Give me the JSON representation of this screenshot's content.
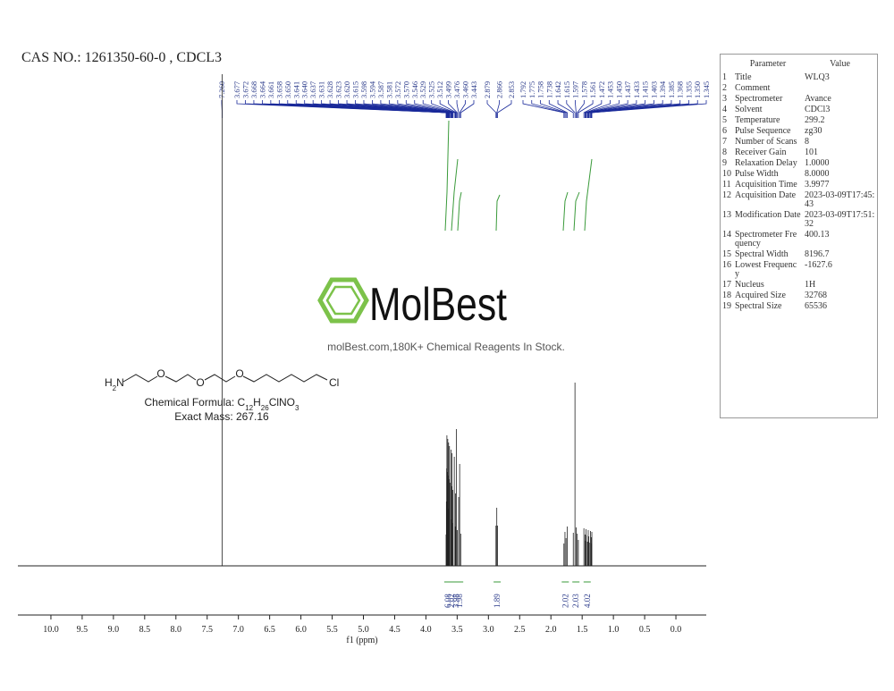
{
  "header": {
    "title": "CAS NO.: 1261350-60-0 , CDCL3"
  },
  "peaks": [
    {
      "value": 7.26,
      "label": "7.260"
    },
    3.677,
    3.672,
    3.668,
    3.664,
    3.661,
    3.658,
    {
      "value": 3.65,
      "label": "3.650"
    },
    3.641,
    {
      "value": 3.64,
      "label": "3.640"
    },
    3.637,
    3.631,
    3.628,
    3.623,
    {
      "value": 3.62,
      "label": "3.620"
    },
    3.615,
    3.598,
    3.594,
    3.587,
    3.581,
    3.572,
    {
      "value": 3.57,
      "label": "3.570"
    },
    3.546,
    3.529,
    3.525,
    3.512,
    3.499,
    3.476,
    {
      "value": 3.46,
      "label": "3.460"
    },
    3.443,
    2.879,
    2.866,
    2.853,
    1.792,
    1.775,
    1.758,
    1.738,
    1.642,
    1.615,
    1.597,
    1.578,
    1.561,
    1.472,
    1.453,
    {
      "value": 1.45,
      "label": "1.450"
    },
    1.437,
    1.433,
    1.415,
    1.403,
    1.394,
    1.385,
    1.368,
    1.355,
    {
      "value": 1.35,
      "label": "1.350"
    },
    1.345
  ],
  "integrals": [
    6.08,
    2.02,
    3.98,
    1.98,
    1.89,
    2.02,
    2.03,
    4.02
  ],
  "axis": {
    "label": "f1 (ppm)",
    "range": [
      10.5,
      -0.5
    ],
    "ticks": [
      {
        "value": 10,
        "label": "10.0"
      },
      9.5,
      {
        "value": 9,
        "label": "9.0"
      },
      8.5,
      {
        "value": 8,
        "label": "8.0"
      },
      7.5,
      {
        "value": 7,
        "label": "7.0"
      },
      6.5,
      {
        "value": 6,
        "label": "6.0"
      },
      5.5,
      {
        "value": 5,
        "label": "5.0"
      },
      4.5,
      {
        "value": 4,
        "label": "4.0"
      },
      3.5,
      {
        "value": 3,
        "label": "3.0"
      },
      2.5,
      {
        "value": 2,
        "label": "2.0"
      },
      1.5,
      {
        "value": 1,
        "label": "1.0"
      },
      0.5,
      {
        "value": 0,
        "label": "0.0"
      }
    ]
  },
  "molecule": {
    "amine": [
      "H",
      "2",
      "N"
    ],
    "oxygen": "O",
    "chlorine": "Cl",
    "formula": [
      "Chemical Formula: C",
      "12",
      "H",
      "26",
      "ClNO",
      "3"
    ],
    "mass": "Exact Mass: 267.16"
  },
  "watermark": {
    "brand": "MolBest",
    "tagline": "molBest.com,180K+ Chemical Reagents In Stock."
  },
  "parameters": {
    "header": [
      "Parameter",
      "Value"
    ],
    "rows": [
      [
        1,
        "Title",
        "WLQ3"
      ],
      [
        2,
        "Comment",
        ""
      ],
      [
        3,
        "Spectrometer",
        "Avance"
      ],
      [
        4,
        "Solvent",
        "CDCl3"
      ],
      [
        5,
        "Temperature",
        299.2
      ],
      [
        6,
        "Pulse Sequence",
        "zg30"
      ],
      [
        7,
        "Number of Scans",
        8
      ],
      [
        8,
        "Receiver Gain",
        101
      ],
      [
        9,
        "Relaxation Delay",
        "1.0000"
      ],
      [
        10,
        "Pulse Width",
        "8.0000"
      ],
      [
        11,
        "Acquisition Time",
        3.9977
      ],
      [
        12,
        "Acquisition Date",
        "2023-03-09T17:45:43"
      ],
      [
        13,
        "Modification Date",
        "2023-03-09T17:51:32"
      ],
      [
        14,
        "Spectrometer Frequency",
        400.13
      ],
      [
        15,
        "Spectral Width",
        8196.7
      ],
      [
        16,
        "Lowest Frequency",
        -1627.6
      ],
      [
        17,
        "Nucleus",
        "1H"
      ],
      [
        18,
        "Acquired Size",
        32768
      ],
      [
        19,
        "Spectral Size",
        65536
      ]
    ]
  }
}
